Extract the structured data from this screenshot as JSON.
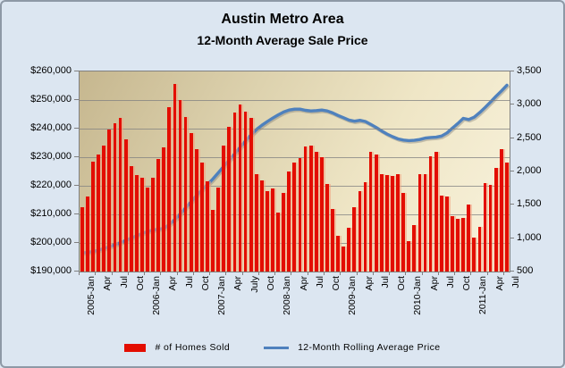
{
  "title": {
    "line1": "Austin Metro Area",
    "line2": "12-Month Average Sale Price"
  },
  "legend": {
    "bars": "# of Homes Sold",
    "line": "12-Month Rolling Average Price"
  },
  "colors": {
    "bar": "#e30d00",
    "line": "#4f81bd",
    "grid": "#808080",
    "background": "#dce6f1",
    "plot_gradient_start": "#c6b78f",
    "plot_gradient_end": "#f8f2dc"
  },
  "chart_data": {
    "type": "combo-bar-line",
    "title": "Austin Metro Area",
    "subtitle": "12-Month Average Sale Price",
    "x_unit": "month",
    "x_range": [
      "2005-Jan",
      "2011-Jul"
    ],
    "x_tick_labels": [
      "2005-Jan",
      "Apr",
      "Jul",
      "Oct",
      "2006-Jan",
      "Apr",
      "Jul",
      "Oct",
      "2007-Jan",
      "Apr",
      "July",
      "Oct",
      "2008-Jan",
      "Apr",
      "Jul",
      "Oct",
      "2009-Jan",
      "Apr",
      "Jul",
      "Oct",
      "2010-Jan",
      "Apr",
      "Jul",
      "Oct",
      "2011-Jan",
      "Apr",
      "Jul"
    ],
    "x_tick_every": 3,
    "y_left": {
      "label_values": [
        260000,
        250000,
        240000,
        230000,
        220000,
        210000,
        200000,
        190000
      ],
      "tick_labels": [
        "$260,000",
        "$250,000",
        "$240,000",
        "$230,000",
        "$220,000",
        "$210,000",
        "$200,000",
        "$190,000"
      ],
      "min": 190000,
      "max": 260000
    },
    "y_right": {
      "label_values": [
        3500,
        3000,
        2500,
        2000,
        1500,
        1000,
        500
      ],
      "tick_labels": [
        "3,500",
        "3,000",
        "2,500",
        "2,000",
        "1,500",
        "1,000",
        "500"
      ],
      "min": 500,
      "max": 3500
    },
    "grid": "horizontal",
    "legend_position": "bottom",
    "series": [
      {
        "name": "# of Homes Sold",
        "type": "bar",
        "axis": "right",
        "color": "#e30d00",
        "values": [
          1470,
          1620,
          2150,
          2260,
          2390,
          2630,
          2720,
          2810,
          2480,
          2080,
          1950,
          1900,
          1760,
          1900,
          2190,
          2360,
          2970,
          3310,
          3070,
          2820,
          2570,
          2330,
          2130,
          1850,
          1420,
          1760,
          2390,
          2670,
          2880,
          3010,
          2900,
          2810,
          1960,
          1870,
          1710,
          1740,
          1390,
          1680,
          2000,
          2140,
          2200,
          2370,
          2390,
          2290,
          2210,
          1810,
          1440,
          1040,
          870,
          1150,
          1460,
          1700,
          1840,
          2290,
          2250,
          1960,
          1940,
          1930,
          1960,
          1680,
          960,
          1200,
          1960,
          1960,
          2230,
          2290,
          1640,
          1620,
          1330,
          1290,
          1300,
          1510,
          1010,
          1170,
          1820,
          1800,
          2060,
          2330,
          2130
        ]
      },
      {
        "name": "12-Month Rolling Average Price",
        "type": "line",
        "axis": "left",
        "color": "#4f81bd",
        "values": [
          196500,
          196700,
          197000,
          197500,
          198100,
          198700,
          199400,
          200100,
          200900,
          201700,
          202500,
          203300,
          204000,
          204500,
          204800,
          205100,
          206500,
          208200,
          210200,
          212300,
          214400,
          216600,
          218600,
          220500,
          222400,
          224600,
          226800,
          229000,
          231200,
          233500,
          235700,
          237800,
          239700,
          241200,
          242500,
          243700,
          244800,
          245800,
          246500,
          246800,
          246800,
          246400,
          246200,
          246300,
          246500,
          246200,
          245500,
          244600,
          243800,
          243000,
          242600,
          242900,
          242500,
          241500,
          240400,
          239200,
          238100,
          237200,
          236400,
          236000,
          235800,
          235900,
          236200,
          236700,
          236900,
          237000,
          237400,
          238500,
          240200,
          241800,
          243600,
          243200,
          244000,
          245600,
          247400,
          249300,
          251300,
          253200,
          255200
        ]
      }
    ]
  }
}
